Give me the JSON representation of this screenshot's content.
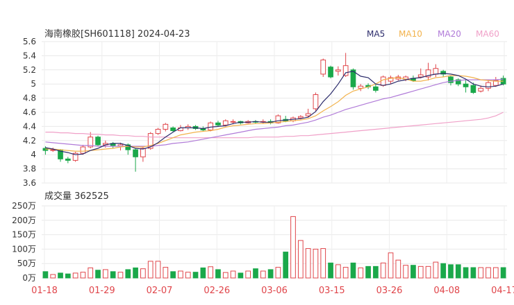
{
  "chart_data": [
    {
      "type": "candlestick",
      "title": "海南橡胶[SH601118] 2024-04-23",
      "legend": [
        {
          "name": "MA5",
          "color": "#2b2b6b"
        },
        {
          "name": "MA10",
          "color": "#f2b24b"
        },
        {
          "name": "MA20",
          "color": "#b07ad8"
        },
        {
          "name": "MA60",
          "color": "#f0a0c8"
        }
      ],
      "legend_position": "top-right",
      "y_ticks": [
        "5.6",
        "5.4",
        "5.2",
        "5",
        "4.8",
        "4.6",
        "4.4",
        "4.2",
        "4",
        "3.8",
        "3.6"
      ],
      "ylim": [
        3.6,
        5.6
      ],
      "grid": true,
      "up_color": "#e0454a",
      "down_color": "#1aa84a",
      "candles": [
        [
          4.09,
          4.06,
          4.12,
          4.0
        ],
        [
          4.06,
          4.07,
          4.1,
          4.04
        ],
        [
          4.07,
          3.94,
          4.08,
          3.9
        ],
        [
          3.94,
          3.92,
          3.97,
          3.88
        ],
        [
          3.92,
          4.02,
          4.04,
          3.9
        ],
        [
          4.02,
          4.11,
          4.14,
          4.0
        ],
        [
          4.11,
          4.25,
          4.32,
          4.09
        ],
        [
          4.25,
          4.14,
          4.27,
          4.12
        ],
        [
          4.14,
          4.16,
          4.2,
          4.1
        ],
        [
          4.16,
          4.12,
          4.18,
          4.09
        ],
        [
          4.12,
          4.14,
          4.17,
          4.06
        ],
        [
          4.14,
          4.07,
          4.16,
          4.0
        ],
        [
          4.07,
          3.97,
          4.09,
          3.76
        ],
        [
          3.97,
          4.09,
          4.11,
          3.9
        ],
        [
          4.09,
          4.3,
          4.32,
          4.07
        ],
        [
          4.3,
          4.36,
          4.38,
          4.28
        ],
        [
          4.36,
          4.43,
          4.45,
          4.33
        ],
        [
          4.38,
          4.34,
          4.4,
          4.32
        ],
        [
          4.34,
          4.38,
          4.42,
          4.33
        ],
        [
          4.38,
          4.4,
          4.43,
          4.35
        ],
        [
          4.4,
          4.37,
          4.42,
          4.35
        ],
        [
          4.37,
          4.35,
          4.4,
          4.33
        ],
        [
          4.35,
          4.45,
          4.47,
          4.33
        ],
        [
          4.45,
          4.42,
          4.48,
          4.4
        ],
        [
          4.42,
          4.48,
          4.5,
          4.4
        ],
        [
          4.46,
          4.47,
          4.5,
          4.43
        ],
        [
          4.47,
          4.45,
          4.48,
          4.43
        ],
        [
          4.45,
          4.47,
          4.49,
          4.44
        ],
        [
          4.47,
          4.46,
          4.49,
          4.44
        ],
        [
          4.46,
          4.47,
          4.5,
          4.44
        ],
        [
          4.47,
          4.45,
          4.5,
          4.43
        ],
        [
          4.45,
          4.55,
          4.57,
          4.44
        ],
        [
          4.5,
          4.48,
          4.55,
          4.46
        ],
        [
          4.48,
          4.52,
          4.54,
          4.46
        ],
        [
          4.52,
          4.54,
          4.56,
          4.5
        ],
        [
          4.55,
          4.58,
          4.65,
          4.53
        ],
        [
          4.65,
          4.85,
          4.88,
          4.62
        ],
        [
          5.14,
          5.34,
          5.36,
          5.1
        ],
        [
          5.24,
          5.1,
          5.26,
          5.08
        ],
        [
          5.18,
          5.2,
          5.25,
          5.12
        ],
        [
          5.12,
          5.26,
          5.44,
          5.1
        ],
        [
          5.2,
          4.96,
          5.22,
          4.92
        ],
        [
          4.94,
          4.97,
          5.0,
          4.9
        ],
        [
          4.98,
          4.96,
          5.01,
          4.93
        ],
        [
          4.96,
          4.91,
          5.0,
          4.88
        ],
        [
          4.98,
          5.1,
          5.12,
          4.96
        ],
        [
          5.04,
          5.09,
          5.12,
          5.0
        ],
        [
          5.07,
          5.1,
          5.13,
          5.05
        ],
        [
          5.07,
          5.1,
          5.12,
          5.04
        ],
        [
          5.08,
          5.05,
          5.12,
          5.03
        ],
        [
          5.1,
          5.13,
          5.22,
          5.08
        ],
        [
          5.1,
          5.2,
          5.3,
          5.05
        ],
        [
          5.14,
          5.22,
          5.28,
          5.1
        ],
        [
          5.18,
          5.14,
          5.2,
          5.1
        ],
        [
          5.1,
          5.02,
          5.12,
          4.98
        ],
        [
          5.06,
          5.0,
          5.08,
          4.97
        ],
        [
          5.0,
          4.96,
          5.06,
          4.88
        ],
        [
          4.98,
          4.88,
          5.02,
          4.86
        ],
        [
          4.9,
          4.94,
          4.98,
          4.88
        ],
        [
          4.94,
          5.02,
          5.05,
          4.9
        ],
        [
          4.98,
          5.05,
          5.1,
          4.96
        ],
        [
          5.08,
          5.0,
          5.12,
          4.98
        ]
      ],
      "ma5": [
        4.1,
        4.08,
        4.05,
        4.03,
        4.0,
        4.01,
        4.06,
        4.09,
        4.14,
        4.16,
        4.16,
        4.13,
        4.09,
        4.08,
        4.11,
        4.17,
        4.25,
        4.32,
        4.38,
        4.38,
        4.38,
        4.37,
        4.39,
        4.4,
        4.41,
        4.44,
        4.46,
        4.46,
        4.47,
        4.46,
        4.46,
        4.48,
        4.49,
        4.5,
        4.51,
        4.53,
        4.61,
        4.75,
        4.86,
        5.0,
        5.16,
        5.18,
        5.11,
        5.09,
        5.0,
        4.98,
        5.0,
        5.04,
        5.06,
        5.08,
        5.09,
        5.12,
        5.14,
        5.15,
        5.14,
        5.12,
        5.07,
        5.0,
        4.97,
        4.96,
        4.97,
        5.0
      ],
      "ma10": [
        4.08,
        4.08,
        4.07,
        4.06,
        4.05,
        4.05,
        4.06,
        4.07,
        4.08,
        4.09,
        4.11,
        4.12,
        4.11,
        4.11,
        4.13,
        4.16,
        4.2,
        4.24,
        4.28,
        4.3,
        4.32,
        4.33,
        4.34,
        4.36,
        4.39,
        4.41,
        4.42,
        4.43,
        4.44,
        4.44,
        4.45,
        4.46,
        4.47,
        4.48,
        4.49,
        4.51,
        4.55,
        4.62,
        4.68,
        4.75,
        4.84,
        4.9,
        4.93,
        4.96,
        5.0,
        5.06,
        5.08,
        5.09,
        5.07,
        5.04,
        5.04,
        5.06,
        5.09,
        5.1,
        5.12,
        5.12,
        5.11,
        5.09,
        5.06,
        5.05,
        5.04,
        5.04
      ],
      "ma20": [
        4.18,
        4.17,
        4.16,
        4.15,
        4.14,
        4.13,
        4.13,
        4.12,
        4.12,
        4.12,
        4.12,
        4.12,
        4.12,
        4.12,
        4.12,
        4.13,
        4.14,
        4.16,
        4.17,
        4.18,
        4.2,
        4.22,
        4.24,
        4.26,
        4.28,
        4.3,
        4.32,
        4.34,
        4.36,
        4.37,
        4.38,
        4.39,
        4.41,
        4.42,
        4.44,
        4.46,
        4.49,
        4.53,
        4.56,
        4.6,
        4.64,
        4.67,
        4.7,
        4.73,
        4.76,
        4.79,
        4.81,
        4.84,
        4.87,
        4.9,
        4.93,
        4.96,
        4.99,
        5.02,
        5.04,
        5.05,
        5.06,
        5.06,
        5.06,
        5.06,
        5.06,
        5.07
      ],
      "ma60": [
        4.32,
        4.32,
        4.31,
        4.31,
        4.3,
        4.3,
        4.29,
        4.29,
        4.28,
        4.28,
        4.27,
        4.27,
        4.26,
        4.26,
        4.25,
        4.25,
        4.25,
        4.24,
        4.24,
        4.24,
        4.24,
        4.24,
        4.24,
        4.24,
        4.24,
        4.24,
        4.24,
        4.24,
        4.25,
        4.25,
        4.25,
        4.25,
        4.26,
        4.26,
        4.27,
        4.27,
        4.28,
        4.29,
        4.3,
        4.31,
        4.32,
        4.33,
        4.34,
        4.35,
        4.36,
        4.37,
        4.38,
        4.39,
        4.4,
        4.41,
        4.42,
        4.43,
        4.44,
        4.45,
        4.46,
        4.47,
        4.48,
        4.49,
        4.5,
        4.52,
        4.55,
        4.6
      ]
    },
    {
      "type": "bar",
      "title": "成交量 362525",
      "y_ticks": [
        "250万",
        "200万",
        "150万",
        "100万",
        "50万",
        "0万"
      ],
      "ylim": [
        0,
        250
      ],
      "unit": "万",
      "categories": [
        "01-18",
        "01-29",
        "02-07",
        "02-26",
        "03-06",
        "03-15",
        "03-26",
        "04-08",
        "04-17"
      ],
      "volumes": [
        22,
        12,
        17,
        14,
        17,
        20,
        35,
        27,
        29,
        22,
        20,
        29,
        35,
        32,
        58,
        58,
        37,
        22,
        24,
        20,
        20,
        35,
        39,
        29,
        19,
        24,
        17,
        24,
        32,
        24,
        29,
        37,
        90,
        213,
        130,
        102,
        100,
        102,
        52,
        46,
        37,
        52,
        35,
        40,
        40,
        52,
        87,
        62,
        44,
        44,
        40,
        40,
        55,
        50,
        46,
        46,
        36,
        36,
        36,
        36,
        36,
        36
      ]
    }
  ]
}
